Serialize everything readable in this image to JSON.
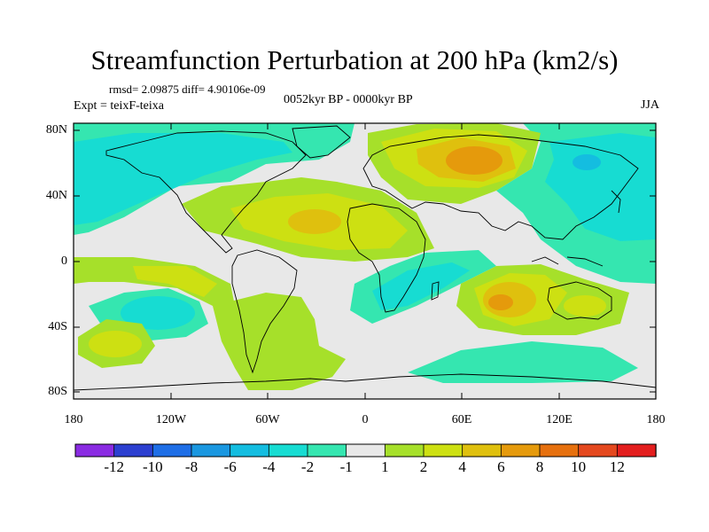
{
  "title": "Streamfunction Perturbation at 200 hPa (km2/s)",
  "stats": "rmsd= 2.09875  diff= 4.90106e-09",
  "experiment": "Expt = teixF-teixa",
  "period": "0052kyr BP - 0000kyr BP",
  "season": "JJA",
  "axes": {
    "lat_labels": [
      "80N",
      "40N",
      "0",
      "40S",
      "80S"
    ],
    "lon_labels": [
      "180",
      "120W",
      "60W",
      "0",
      "60E",
      "120E",
      "180"
    ]
  },
  "colorbar": {
    "labels": [
      "-12",
      "-10",
      "-8",
      "-6",
      "-4",
      "-2",
      "-1",
      "1",
      "2",
      "4",
      "6",
      "8",
      "10",
      "12"
    ],
    "colors": [
      "#8a2be2",
      "#2c3fd0",
      "#1e6ee6",
      "#1a97e0",
      "#14bde0",
      "#17dcd2",
      "#35e6b0",
      "#e8e8e8",
      "#a6e02a",
      "#cde012",
      "#dfc00e",
      "#e59a0c",
      "#e6700e",
      "#e4481e",
      "#e31e1e"
    ]
  },
  "legend_colors": {
    "neg_light": "#35e6b0",
    "neg_mid": "#17dcd2",
    "neg_strong": "#14bde0",
    "neutral": "#e8e8e8",
    "pos_light": "#a6e02a",
    "pos_mid": "#cde012",
    "pos_strong": "#dfc00e",
    "pos_stronger": "#e59a0c"
  }
}
